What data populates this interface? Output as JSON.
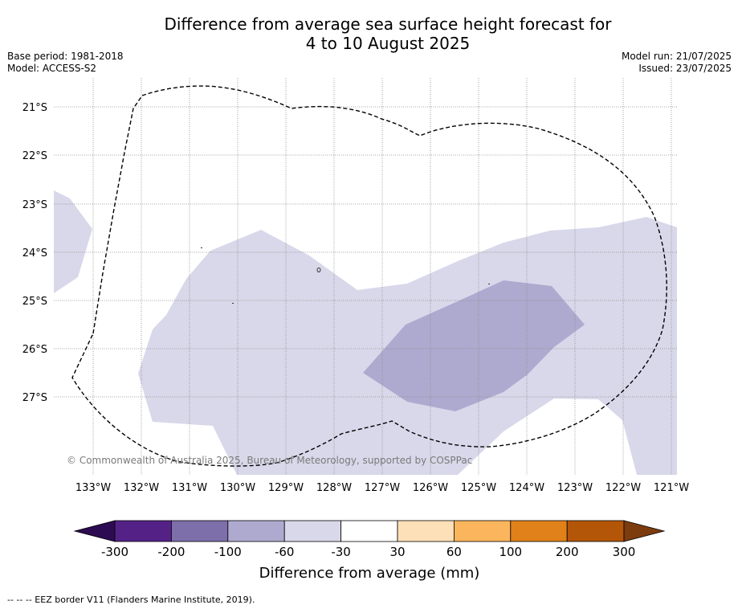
{
  "title": {
    "line1": "Difference from average sea surface height forecast for",
    "line2": "4 to 10 August 2025"
  },
  "meta_left": {
    "base_period": "Base period: 1981-2018",
    "model": "Model: ACCESS-S2"
  },
  "meta_right": {
    "model_run": "Model run: 21/07/2025",
    "issued": "Issued: 23/07/2025"
  },
  "map": {
    "latitude_labels": [
      "21°S",
      "22°S",
      "23°S",
      "24°S",
      "25°S",
      "26°S",
      "27°S"
    ],
    "longitude_labels": [
      "133°W",
      "132°W",
      "131°W",
      "130°W",
      "129°W",
      "128°W",
      "127°W",
      "126°W",
      "125°W",
      "124°W",
      "123°W",
      "122°W",
      "121°W"
    ],
    "copyright": "© Commonwealth of Australia 2025, Bureau of Meteorology, supported by COSPPac",
    "colors": {
      "band_-100_-60": "#aeaacf",
      "band_-60_-30": "#d8d8ea",
      "eez_border": "#000000",
      "grid": "#8a8a8a"
    }
  },
  "colorbar": {
    "ticks": [
      "-300",
      "-200",
      "-100",
      "-60",
      "-30",
      "30",
      "60",
      "100",
      "200",
      "300"
    ],
    "label": "Difference from average (mm)",
    "colors": {
      "below_-300": "#2d0b52",
      "-300_-200": "#542287",
      "-200_-100": "#7d6faa",
      "-100_-60": "#aeaacf",
      "-60_-30": "#d8d8ea",
      "-30_30": "#ffffff",
      "30_60": "#fde0b7",
      "60_100": "#fbb55d",
      "100_200": "#e0811a",
      "200_300": "#b35608",
      "above_300": "#7d3c0e"
    }
  },
  "footer": "--  --  -- EEZ border V11 (Flanders Marine Institute, 2019)."
}
